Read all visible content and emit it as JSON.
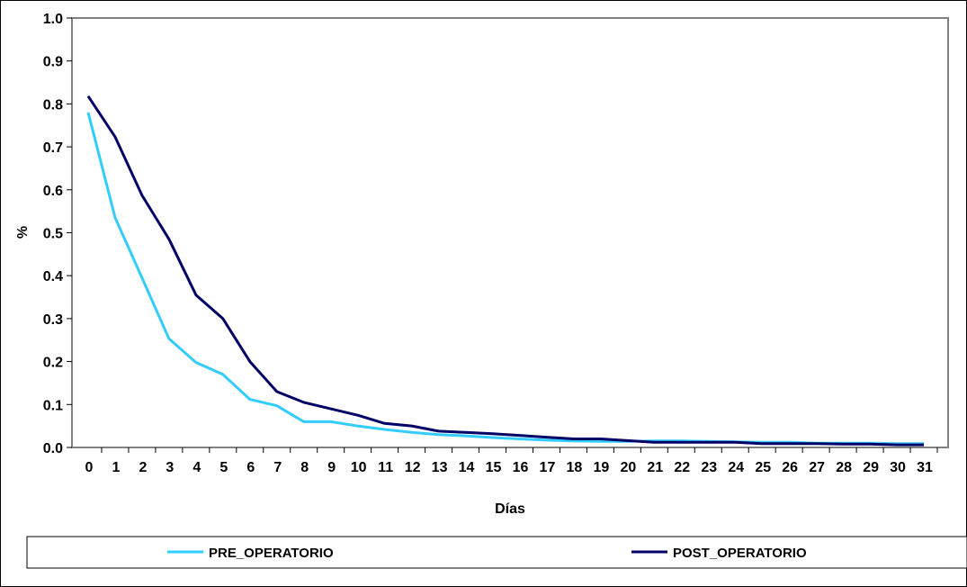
{
  "chart_data": {
    "type": "line",
    "title": "",
    "xlabel": "Días",
    "ylabel": "%",
    "categories": [
      "0",
      "1",
      "2",
      "3",
      "4",
      "5",
      "6",
      "7",
      "8",
      "9",
      "10",
      "11",
      "12",
      "13",
      "14",
      "15",
      "16",
      "17",
      "18",
      "19",
      "20",
      "21",
      "22",
      "23",
      "24",
      "25",
      "26",
      "27",
      "28",
      "29",
      "30",
      "31"
    ],
    "ylim": [
      0,
      1.0
    ],
    "yticks": [
      "0.0",
      "0.1",
      "0.2",
      "0.3",
      "0.4",
      "0.5",
      "0.6",
      "0.7",
      "0.8",
      "0.9",
      "1.0"
    ],
    "grid": false,
    "legend_position": "bottom",
    "series": [
      {
        "name": "PRE_OPERATORIO",
        "color": "#33ccff",
        "values": [
          0.78,
          0.535,
          0.395,
          0.253,
          0.198,
          0.17,
          0.112,
          0.097,
          0.06,
          0.06,
          0.05,
          0.042,
          0.035,
          0.03,
          0.027,
          0.023,
          0.02,
          0.017,
          0.015,
          0.014,
          0.014,
          0.015,
          0.015,
          0.014,
          0.013,
          0.012,
          0.012,
          0.01,
          0.01,
          0.01,
          0.009,
          0.009
        ]
      },
      {
        "name": "POST_OPERATORIO",
        "color": "#000066",
        "values": [
          0.818,
          0.723,
          0.587,
          0.485,
          0.355,
          0.3,
          0.2,
          0.13,
          0.105,
          0.09,
          0.075,
          0.056,
          0.05,
          0.038,
          0.035,
          0.032,
          0.028,
          0.024,
          0.02,
          0.02,
          0.016,
          0.012,
          0.012,
          0.012,
          0.012,
          0.009,
          0.009,
          0.009,
          0.008,
          0.008,
          0.006,
          0.006
        ]
      }
    ]
  }
}
